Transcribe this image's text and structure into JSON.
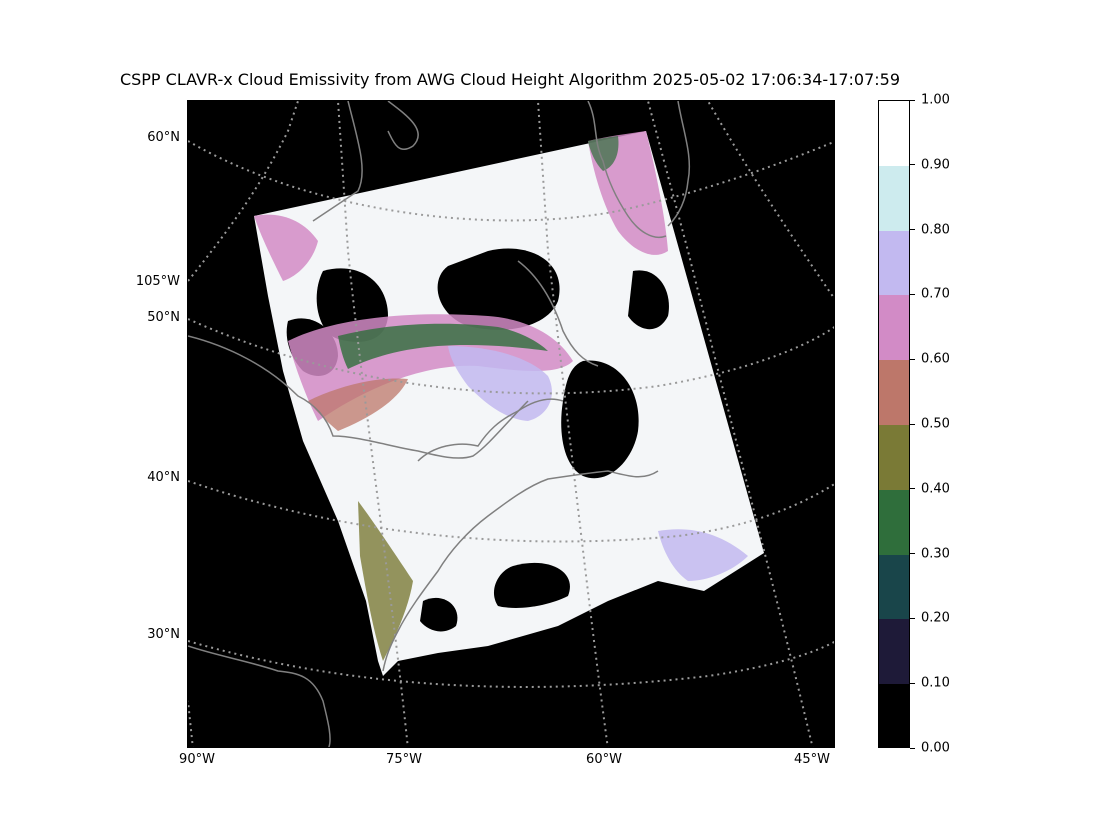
{
  "title": "CSPP CLAVR-x Cloud Emissivity from AWG Cloud Height Algorithm 2025-05-02 17:06:34-17:07:59",
  "map": {
    "background": "#000000",
    "coastline_color": "#808080",
    "gridline_color": "#9a9a9a",
    "left_labels": [
      "60°N",
      "105°W",
      "50°N",
      "40°N",
      "30°N"
    ],
    "bottom_labels": [
      "90°W",
      "75°W",
      "60°W",
      "45°W"
    ]
  },
  "colorbar": {
    "tick_labels": [
      "0.00",
      "0.10",
      "0.20",
      "0.30",
      "0.40",
      "0.50",
      "0.60",
      "0.70",
      "0.80",
      "0.90",
      "1.00"
    ],
    "segments": [
      {
        "from": 0.0,
        "to": 0.1,
        "color": "#000000"
      },
      {
        "from": 0.1,
        "to": 0.2,
        "color": "#1e1a38"
      },
      {
        "from": 0.2,
        "to": 0.3,
        "color": "#19454a"
      },
      {
        "from": 0.3,
        "to": 0.4,
        "color": "#2f6e3b"
      },
      {
        "from": 0.4,
        "to": 0.5,
        "color": "#7a7a36"
      },
      {
        "from": 0.5,
        "to": 0.6,
        "color": "#bd776a"
      },
      {
        "from": 0.6,
        "to": 0.7,
        "color": "#d28bc6"
      },
      {
        "from": 0.7,
        "to": 0.8,
        "color": "#c2b9f0"
      },
      {
        "from": 0.8,
        "to": 0.9,
        "color": "#cdebee"
      },
      {
        "from": 0.9,
        "to": 1.0,
        "color": "#ffffff"
      }
    ]
  }
}
